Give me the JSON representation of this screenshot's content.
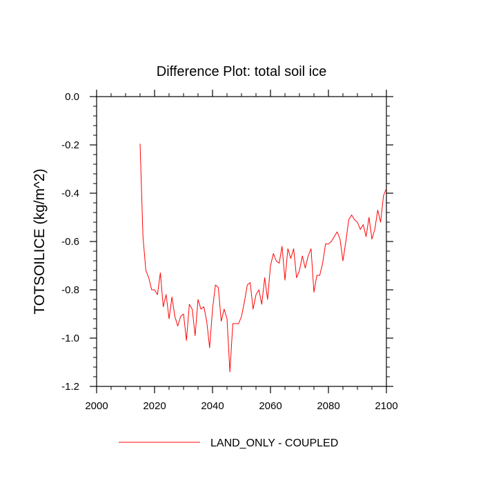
{
  "chart_data": {
    "type": "line",
    "title": "Difference Plot: total soil ice",
    "xlabel": "",
    "ylabel": "TOTSOILICE  (kg/m^2)",
    "xlim": [
      2000,
      2100
    ],
    "ylim": [
      -1.2,
      0.0
    ],
    "x_ticks": [
      2000,
      2020,
      2040,
      2060,
      2080,
      2100
    ],
    "x_tick_labels": [
      "2000",
      "2020",
      "2040",
      "2060",
      "2080",
      "2100"
    ],
    "y_ticks": [
      0.0,
      -0.2,
      -0.4,
      -0.6,
      -0.8,
      -1.0,
      -1.2
    ],
    "y_tick_labels": [
      "0.0",
      "-0.2",
      "-0.4",
      "-0.6",
      "-0.8",
      "-1.0",
      "-1.2"
    ],
    "grid": false,
    "legend_position": "bottom",
    "series": [
      {
        "name": "LAND_ONLY - COUPLED",
        "color": "#ff0000",
        "x": [
          2015,
          2016,
          2017,
          2018,
          2019,
          2020,
          2021,
          2022,
          2023,
          2024,
          2025,
          2026,
          2027,
          2028,
          2029,
          2030,
          2031,
          2032,
          2033,
          2034,
          2035,
          2036,
          2037,
          2038,
          2039,
          2040,
          2041,
          2042,
          2043,
          2044,
          2045,
          2046,
          2047,
          2048,
          2049,
          2050,
          2051,
          2052,
          2053,
          2054,
          2055,
          2056,
          2057,
          2058,
          2059,
          2060,
          2061,
          2062,
          2063,
          2064,
          2065,
          2066,
          2067,
          2068,
          2069,
          2070,
          2071,
          2072,
          2073,
          2074,
          2075,
          2076,
          2077,
          2078,
          2079,
          2080,
          2081,
          2082,
          2083,
          2084,
          2085,
          2086,
          2087,
          2088,
          2089,
          2090,
          2091,
          2092,
          2093,
          2094,
          2095,
          2096,
          2097,
          2098,
          2099,
          2100
        ],
        "y": [
          -0.195,
          -0.58,
          -0.72,
          -0.75,
          -0.8,
          -0.8,
          -0.82,
          -0.73,
          -0.87,
          -0.82,
          -0.92,
          -0.83,
          -0.91,
          -0.95,
          -0.91,
          -0.9,
          -1.01,
          -0.86,
          -0.88,
          -0.99,
          -0.84,
          -0.88,
          -0.87,
          -0.93,
          -1.04,
          -0.88,
          -0.78,
          -0.79,
          -0.93,
          -0.88,
          -0.92,
          -1.14,
          -0.94,
          -0.94,
          -0.94,
          -0.91,
          -0.85,
          -0.78,
          -0.77,
          -0.88,
          -0.82,
          -0.8,
          -0.86,
          -0.75,
          -0.84,
          -0.7,
          -0.65,
          -0.68,
          -0.69,
          -0.62,
          -0.76,
          -0.63,
          -0.67,
          -0.63,
          -0.75,
          -0.72,
          -0.66,
          -0.71,
          -0.66,
          -0.63,
          -0.81,
          -0.74,
          -0.74,
          -0.69,
          -0.61,
          -0.61,
          -0.6,
          -0.58,
          -0.56,
          -0.59,
          -0.68,
          -0.6,
          -0.51,
          -0.49,
          -0.51,
          -0.52,
          -0.55,
          -0.53,
          -0.58,
          -0.5,
          -0.59,
          -0.55,
          -0.47,
          -0.52,
          -0.41,
          -0.38
        ]
      }
    ]
  }
}
